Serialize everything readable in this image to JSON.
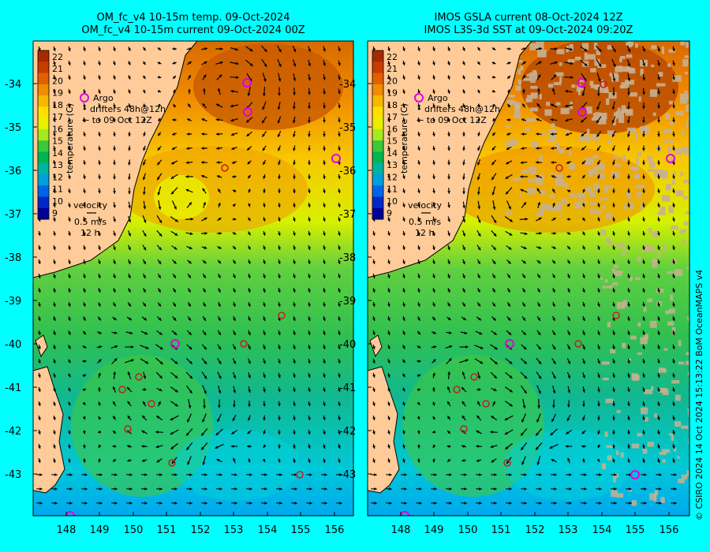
{
  "left_panel": {
    "title_line1": "OM_fc_v4  10-15m temp. 09-Oct-2024",
    "title_line2": "OM_fc_v4  10-15m current 09-Oct-2024 00Z"
  },
  "right_panel": {
    "title_line1": "IMOS GSLA current 08-Oct-2024 12Z",
    "title_line2": "IMOS L3S-3d SST at 09-Oct-2024 09:20Z"
  },
  "colorbar": {
    "label": "temperature (C)",
    "ticks": [
      "22",
      "21",
      "20",
      "19",
      "18",
      "17",
      "16",
      "15",
      "14",
      "13",
      "12",
      "11",
      "10",
      "9"
    ],
    "colors": [
      "#a52a00",
      "#c83c00",
      "#e06000",
      "#f08c00",
      "#f8b800",
      "#ffe000",
      "#e8f000",
      "#a8e820",
      "#3cc83c",
      "#00b450",
      "#00b4a0",
      "#00a0dc",
      "#0064e6",
      "#0028c8",
      "#000096"
    ]
  },
  "legend": {
    "argo": "Argo",
    "drifters": "drifters 48h@12h",
    "to_date": "to 09 Oct 12Z",
    "velocity": "velocity",
    "speed": "0.5 m/s",
    "hours": "12 h"
  },
  "axes": {
    "lat_labels": [
      "-34",
      "-35",
      "-36",
      "-37",
      "-38",
      "-39",
      "-40",
      "-41",
      "-42",
      "-43"
    ],
    "lon_labels": [
      "148",
      "149",
      "150",
      "151",
      "152",
      "153",
      "154",
      "155",
      "156"
    ]
  },
  "credit": "© CSIRO 2024   14 Oct 2024 15:13:22 BoM OceanMAPS v4",
  "colors": {
    "background": "#00ffff",
    "land": "#ffcc99",
    "cloud": "#c8b090"
  }
}
